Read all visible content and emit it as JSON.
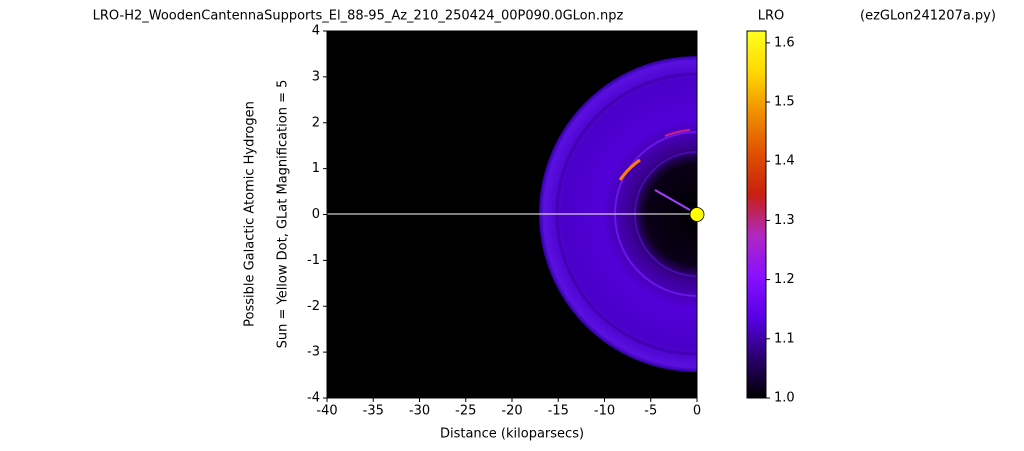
{
  "chart_data": {
    "type": "image",
    "title": "LRO-H2_WoodenCantennaSupports_El_88-95_Az_210_250424_00P090.0GLon.npz",
    "subtitle": "(ezGLon241207a.py)",
    "xlabel": "Distance (kiloparsecs)",
    "ylabel": [
      "Possible Galactic Atomic Hydrogen",
      "Sun = Yellow Dot, GLat Magnification = 5"
    ],
    "xlim": [
      -40,
      0
    ],
    "ylim": [
      -4,
      4
    ],
    "xticks": [
      -40,
      -35,
      -30,
      -25,
      -20,
      -15,
      -10,
      -5,
      0
    ],
    "yticks": [
      -4,
      -3,
      -2,
      -1,
      0,
      1,
      2,
      3,
      4
    ],
    "sun": {
      "x": 0,
      "y": 0,
      "color": "#ffff00"
    },
    "colorbar": {
      "label": "LRO",
      "lim": [
        1.0,
        1.62
      ],
      "ticks": [
        {
          "value": 1,
          "label": "1.0"
        },
        1.1,
        1.2,
        1.3,
        1.4,
        1.5,
        1.6
      ],
      "colormap": [
        "#000000",
        "#2a0070",
        "#5a00e8",
        "#8a10ff",
        "#b028c0",
        "#c82010",
        "#e05000",
        "#f09000",
        "#ffd800",
        "#ffff20"
      ]
    }
  }
}
